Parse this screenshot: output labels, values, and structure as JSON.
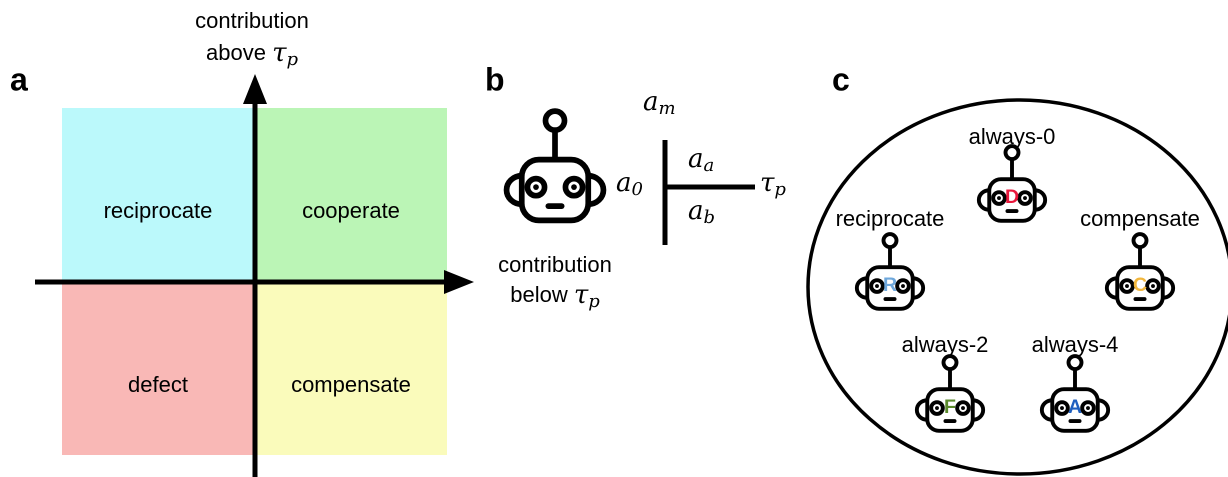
{
  "panel_a": {
    "label": "a",
    "y_axis_label": {
      "line1": "contribution",
      "line2": "above",
      "symbol": {
        "base": "τ",
        "sub": "p"
      }
    },
    "quadrants": [
      {
        "text": "reciprocate",
        "color": "#bbf9fb"
      },
      {
        "text": "cooperate",
        "color": "#bbf5b6"
      },
      {
        "text": "defect",
        "color": "#f9b8b6"
      },
      {
        "text": "compensate",
        "color": "#fafbbb"
      }
    ]
  },
  "panel_b": {
    "label": "b",
    "symbols": {
      "top": {
        "base": "a",
        "sub": "m"
      },
      "upper": {
        "base": "a",
        "sub": "a"
      },
      "left": {
        "base": "a",
        "sub": "0"
      },
      "lower": {
        "base": "a",
        "sub": "b"
      },
      "right": {
        "base": "τ",
        "sub": "p"
      }
    },
    "x_axis_label": {
      "line1": "contribution",
      "line2": "below",
      "symbol": {
        "base": "τ",
        "sub": "p"
      }
    }
  },
  "panel_c": {
    "label": "c",
    "robots": [
      {
        "label": "always-0",
        "letter": "D",
        "color": "#e8173b"
      },
      {
        "label": "reciprocate",
        "letter": "R",
        "color": "#6fa8dc"
      },
      {
        "label": "compensate",
        "letter": "C",
        "color": "#f2b73e"
      },
      {
        "label": "always-2",
        "letter": "F",
        "color": "#5a8a2b"
      },
      {
        "label": "always-4",
        "letter": "A",
        "color": "#1f5fbf"
      }
    ]
  }
}
